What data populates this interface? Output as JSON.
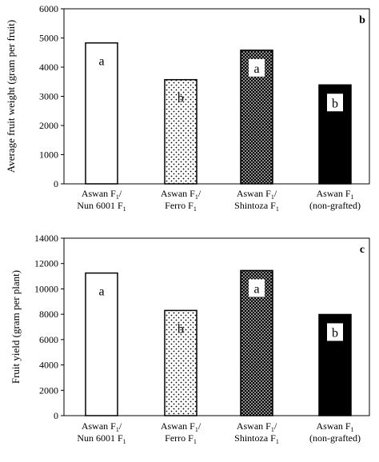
{
  "chart_data": [
    {
      "type": "bar",
      "panel_label": "b",
      "ylabel": "Average fruit weight (gram per fruit)",
      "ylim": [
        0,
        6000
      ],
      "yticks": [
        "0",
        "1000",
        "2000",
        "3000",
        "4000",
        "5000",
        "6000"
      ],
      "categories": [
        {
          "line1": "Aswan F",
          "line1_sub": "1",
          "line1_tail": "/",
          "line2": "Nun 6001 F",
          "line2_sub": "1"
        },
        {
          "line1": "Aswan F",
          "line1_sub": "1",
          "line1_tail": "/",
          "line2": "Ferro F",
          "line2_sub": "1"
        },
        {
          "line1": "Aswan F",
          "line1_sub": "1",
          "line1_tail": "/",
          "line2": "Shintoza F",
          "line2_sub": "1"
        },
        {
          "line1": "Aswan F",
          "line1_sub": "1",
          "line1_tail": "",
          "line2": "(non-grafted)",
          "line2_sub": ""
        }
      ],
      "values": [
        4830,
        3570,
        4580,
        3390
      ],
      "letters": [
        "a",
        "b",
        "a",
        "b"
      ],
      "fills": [
        "white",
        "light-dots",
        "dense-dots",
        "black"
      ]
    },
    {
      "type": "bar",
      "panel_label": "c",
      "ylabel": "Fruit yield (gram per plant)",
      "ylim": [
        0,
        14000
      ],
      "yticks": [
        "0",
        "2000",
        "4000",
        "6000",
        "8000",
        "10000",
        "12000",
        "14000"
      ],
      "categories": [
        {
          "line1": "Aswan F",
          "line1_sub": "1",
          "line1_tail": "/",
          "line2": "Nun 6001 F",
          "line2_sub": "1"
        },
        {
          "line1": "Aswan F",
          "line1_sub": "1",
          "line1_tail": "/",
          "line2": "Ferro F",
          "line2_sub": "1"
        },
        {
          "line1": "Aswan F",
          "line1_sub": "1",
          "line1_tail": "/",
          "line2": "Shintoza F",
          "line2_sub": "1"
        },
        {
          "line1": "Aswan F",
          "line1_sub": "1",
          "line1_tail": "",
          "line2": "(non-grafted)",
          "line2_sub": ""
        }
      ],
      "values": [
        11250,
        8300,
        11450,
        7980
      ],
      "letters": [
        "a",
        "b",
        "a",
        "b"
      ],
      "fills": [
        "white",
        "light-dots",
        "dense-dots",
        "black"
      ]
    }
  ]
}
